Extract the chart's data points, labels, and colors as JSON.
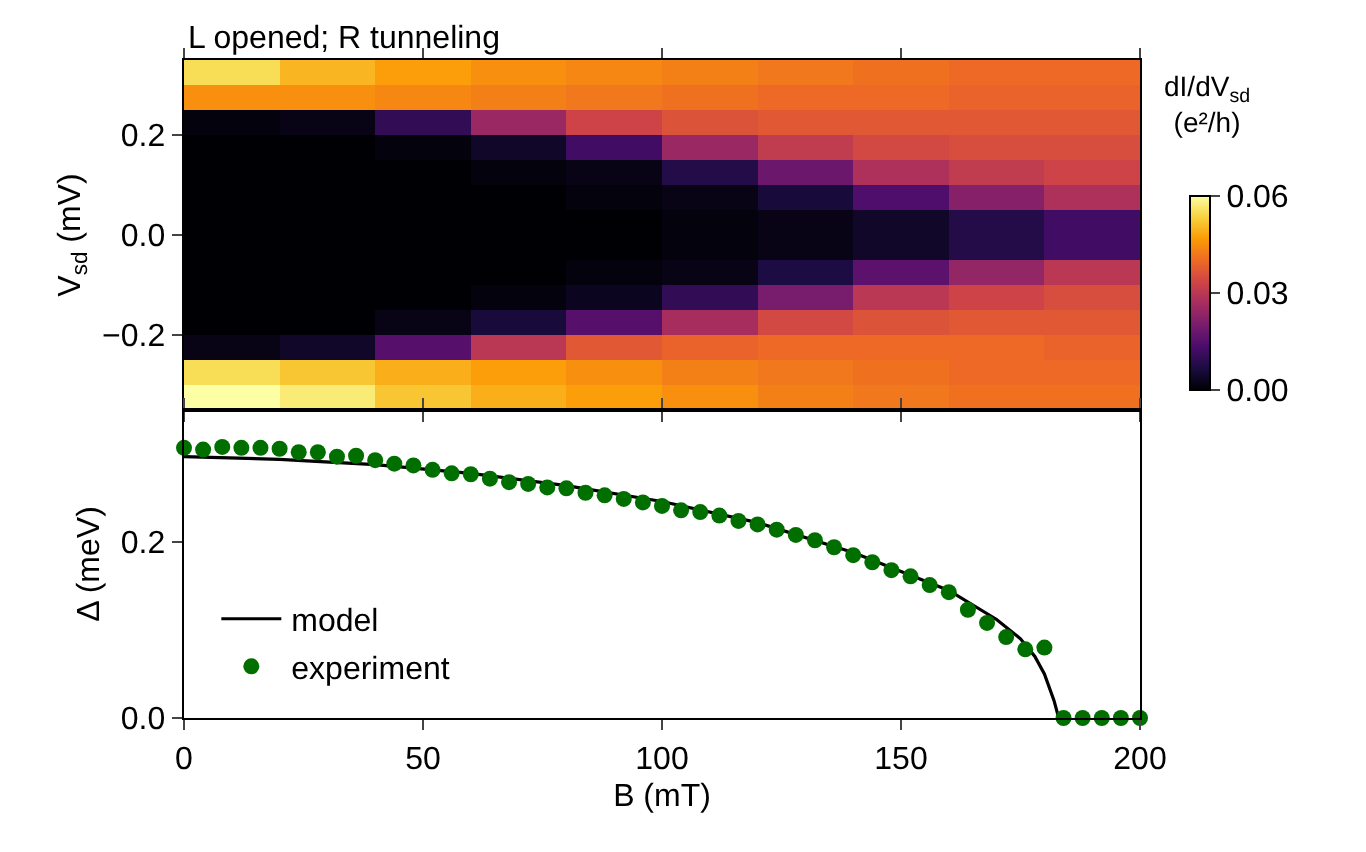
{
  "chart_data": [
    {
      "type": "heatmap",
      "title": "L opened; R tunneling",
      "ylabel": "V$_{sd}$ (mV)",
      "clabel": "dI/dV$_{sd}$ (e²/h)",
      "x": [
        10,
        30,
        50,
        70,
        90,
        110,
        130,
        150,
        170,
        190
      ],
      "y": [
        0.325,
        0.275,
        0.225,
        0.175,
        0.125,
        0.075,
        0.025,
        -0.025,
        -0.075,
        -0.125,
        -0.175,
        -0.225,
        -0.275,
        -0.325
      ],
      "cells": [
        [
          0.055,
          0.05,
          0.047,
          0.045,
          0.044,
          0.043,
          0.042,
          0.041,
          0.04,
          0.04
        ],
        [
          0.045,
          0.045,
          0.044,
          0.043,
          0.042,
          0.041,
          0.04,
          0.04,
          0.039,
          0.039
        ],
        [
          0.001,
          0.002,
          0.01,
          0.025,
          0.033,
          0.036,
          0.037,
          0.037,
          0.037,
          0.037
        ],
        [
          0.0,
          0.0,
          0.001,
          0.004,
          0.012,
          0.025,
          0.031,
          0.034,
          0.035,
          0.035
        ],
        [
          0.0,
          0.0,
          0.0,
          0.001,
          0.002,
          0.008,
          0.018,
          0.028,
          0.031,
          0.033
        ],
        [
          0.0,
          0.0,
          0.0,
          0.0,
          0.001,
          0.002,
          0.006,
          0.014,
          0.022,
          0.028
        ],
        [
          0.0,
          0.0,
          0.0,
          0.0,
          0.0,
          0.001,
          0.002,
          0.004,
          0.008,
          0.012
        ],
        [
          0.0,
          0.0,
          0.0,
          0.0,
          0.0,
          0.001,
          0.002,
          0.004,
          0.008,
          0.012
        ],
        [
          0.0,
          0.0,
          0.0,
          0.0,
          0.001,
          0.002,
          0.007,
          0.016,
          0.024,
          0.03
        ],
        [
          0.0,
          0.0,
          0.0,
          0.001,
          0.003,
          0.01,
          0.02,
          0.03,
          0.033,
          0.035
        ],
        [
          0.0,
          0.0,
          0.002,
          0.006,
          0.015,
          0.027,
          0.034,
          0.036,
          0.037,
          0.037
        ],
        [
          0.002,
          0.004,
          0.015,
          0.03,
          0.037,
          0.039,
          0.04,
          0.04,
          0.04,
          0.039
        ],
        [
          0.055,
          0.052,
          0.049,
          0.047,
          0.045,
          0.043,
          0.042,
          0.041,
          0.04,
          0.04
        ],
        [
          0.06,
          0.057,
          0.052,
          0.049,
          0.047,
          0.045,
          0.043,
          0.042,
          0.041,
          0.041
        ]
      ],
      "xlim": [
        0,
        200
      ],
      "xticks": [
        {
          "value": 0,
          "label": null
        },
        {
          "value": 50,
          "label": null
        },
        {
          "value": 100,
          "label": null
        },
        {
          "value": 150,
          "label": null
        },
        {
          "value": 200,
          "label": null
        }
      ],
      "ylim": [
        -0.35,
        0.35
      ],
      "yticks": [
        {
          "value": -0.2,
          "label": "−0.2"
        },
        {
          "value": 0.0,
          "label": "0.0"
        },
        {
          "value": 0.2,
          "label": "0.2"
        }
      ],
      "clim": [
        0,
        0.06
      ],
      "cticks": [
        {
          "value": 0,
          "label": "0.00"
        },
        {
          "value": 0.03,
          "label": "0.03"
        },
        {
          "value": 0.06,
          "label": "0.06"
        }
      ],
      "tick_labels": "y"
    },
    {
      "type": "scatter",
      "xlabel": "B (mT)",
      "ylabel": "Δ (meV)",
      "legend": "bottom left",
      "series": [
        {
          "name": "model",
          "type": "line",
          "color": "#000000",
          "line_style": "solid",
          "marker": "none",
          "x": [
            0,
            20,
            40,
            60,
            80,
            100,
            120,
            140,
            160,
            170,
            175,
            178,
            180,
            182,
            183
          ],
          "values": [
            0.297,
            0.294,
            0.288,
            0.278,
            0.264,
            0.246,
            0.222,
            0.188,
            0.145,
            0.112,
            0.09,
            0.07,
            0.05,
            0.02,
            0
          ]
        },
        {
          "name": "experiment",
          "type": "scatter",
          "marker": "circle",
          "color": "#006f00",
          "x": [
            0,
            4,
            8,
            12,
            16,
            20,
            24,
            28,
            32,
            36,
            40,
            44,
            48,
            52,
            56,
            60,
            64,
            68,
            72,
            76,
            80,
            84,
            88,
            92,
            96,
            100,
            104,
            108,
            112,
            116,
            120,
            124,
            128,
            132,
            136,
            140,
            144,
            148,
            152,
            156,
            160,
            164,
            168,
            172,
            176,
            180,
            184,
            188,
            192,
            196,
            200
          ],
          "values": [
            0.307,
            0.305,
            0.308,
            0.307,
            0.307,
            0.306,
            0.302,
            0.302,
            0.297,
            0.298,
            0.293,
            0.289,
            0.287,
            0.282,
            0.278,
            0.277,
            0.272,
            0.268,
            0.266,
            0.262,
            0.261,
            0.256,
            0.253,
            0.249,
            0.245,
            0.241,
            0.236,
            0.234,
            0.23,
            0.224,
            0.22,
            0.214,
            0.208,
            0.202,
            0.194,
            0.185,
            0.177,
            0.168,
            0.161,
            0.151,
            0.143,
            0.123,
            0.108,
            0.092,
            0.078,
            0.08,
            0,
            0,
            0,
            0,
            0
          ]
        }
      ],
      "xlim": [
        0,
        200
      ],
      "xticks": [
        0,
        50,
        100,
        150,
        200
      ],
      "ylim": [
        0,
        0.35
      ],
      "yticks": [
        {
          "value": 0,
          "label": "0.0"
        },
        {
          "value": 0.2,
          "label": "0.2"
        }
      ]
    }
  ]
}
